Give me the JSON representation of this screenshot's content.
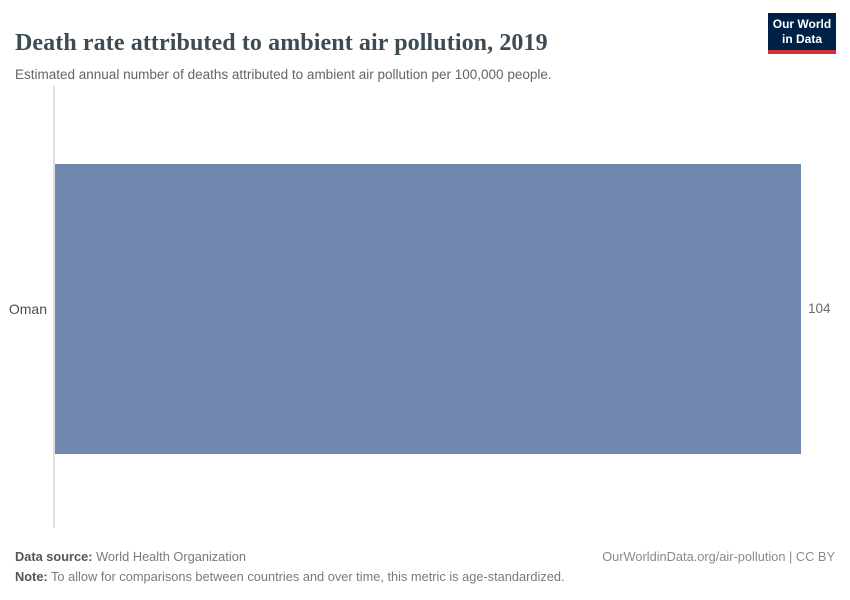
{
  "header": {
    "title": "Death rate attributed to ambient air pollution, 2019",
    "subtitle": "Estimated annual number of deaths attributed to ambient air pollution per 100,000 people.",
    "logo": {
      "line1": "Our World",
      "line2": "in Data"
    }
  },
  "chart_data": {
    "type": "bar",
    "orientation": "horizontal",
    "title": "Death rate attributed to ambient air pollution, 2019",
    "categories": [
      "Oman"
    ],
    "values": [
      104
    ],
    "value_labels": [
      "104"
    ],
    "xlabel": "",
    "ylabel": "",
    "xlim": [
      0,
      104
    ],
    "grid": false,
    "legend": false,
    "bar_color": "#7087ae"
  },
  "footer": {
    "data_source_label": "Data source:",
    "data_source_value": " World Health Organization",
    "note_label": "Note:",
    "note_value": " To allow for comparisons between countries and over time, this metric is age-standardized.",
    "link": "OurWorldinData.org/air-pollution | CC BY"
  },
  "colors": {
    "bar": "#7087ae",
    "title": "#3d4b55",
    "axis_line": "#dedede",
    "logo_navy": "#002147",
    "logo_red": "#d13239"
  }
}
